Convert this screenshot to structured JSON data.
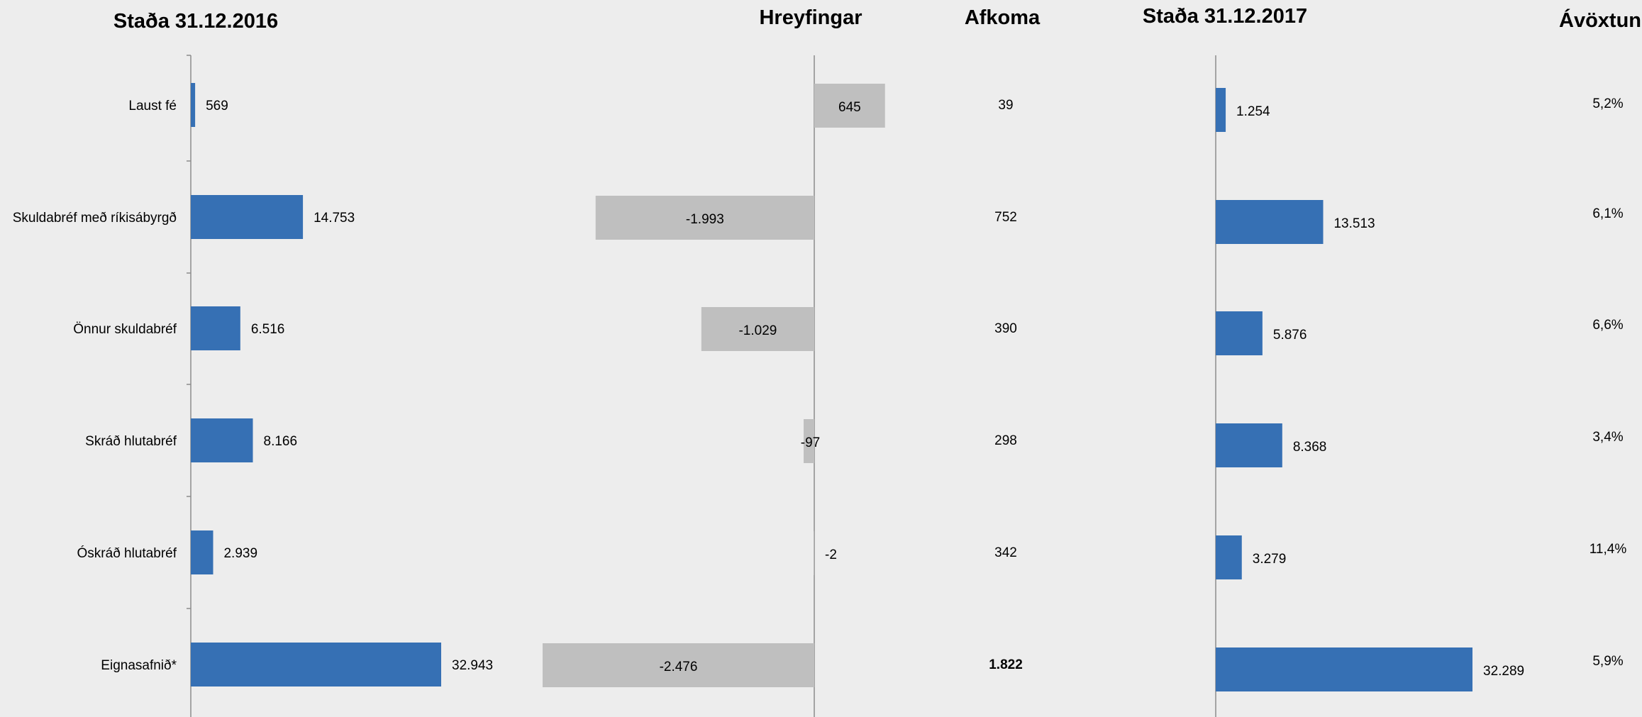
{
  "chart_data": [
    {
      "type": "bar",
      "orientation": "horizontal",
      "title": "Staða 31.12.2016",
      "categories": [
        "Laust fé",
        "Skuldabréf með ríkisábyrgð",
        "Önnur skuldabréf",
        "Skráð hlutabréf",
        "Óskráð hlutabréf",
        "Eignasafnið*"
      ],
      "values": [
        569,
        14753,
        6516,
        8166,
        2939,
        32943
      ],
      "value_labels": [
        "569",
        "14.753",
        "6.516",
        "8.166",
        "2.939",
        "32.943"
      ],
      "color": "#3670b4"
    },
    {
      "type": "bar",
      "orientation": "horizontal",
      "title": "Hreyfingar",
      "categories": [
        "Laust fé",
        "Skuldabréf með ríkisábyrgð",
        "Önnur skuldabréf",
        "Skráð hlutabréf",
        "Óskráð hlutabréf",
        "Eignasafnið*"
      ],
      "values": [
        645,
        -1993,
        -1029,
        -97,
        -2,
        -2476
      ],
      "value_labels": [
        "645",
        "-1.993",
        "-1.029",
        "-97",
        "-2",
        "-2.476"
      ],
      "color": "#bfbfbf"
    },
    {
      "type": "table",
      "title": "Afkoma",
      "values": [
        39,
        752,
        390,
        298,
        342,
        1822
      ],
      "value_labels": [
        "39",
        "752",
        "390",
        "298",
        "342",
        "1.822"
      ]
    },
    {
      "type": "bar",
      "orientation": "horizontal",
      "title": "Staða 31.12.2017",
      "categories": [
        "Laust fé",
        "Skuldabréf með ríkisábyrgð",
        "Önnur skuldabréf",
        "Skráð hlutabréf",
        "Óskráð hlutabréf",
        "Eignasafnið*"
      ],
      "values": [
        1254,
        13513,
        5876,
        8368,
        3279,
        32289
      ],
      "value_labels": [
        "1.254",
        "13.513",
        "5.876",
        "8.368",
        "3.279",
        "32.289"
      ],
      "color": "#3670b4"
    },
    {
      "type": "table",
      "title": "Ávöxtun",
      "values": [
        5.2,
        6.1,
        6.6,
        3.4,
        11.4,
        5.9
      ],
      "value_labels": [
        "5,2%",
        "6,1%",
        "6,6%",
        "3,4%",
        "11,4%",
        "5,9%"
      ]
    }
  ],
  "colors": {
    "background": "#ededed",
    "bar_blue": "#3670b4",
    "bar_gray": "#bfbfbf",
    "axis": "#8c8c8c"
  }
}
